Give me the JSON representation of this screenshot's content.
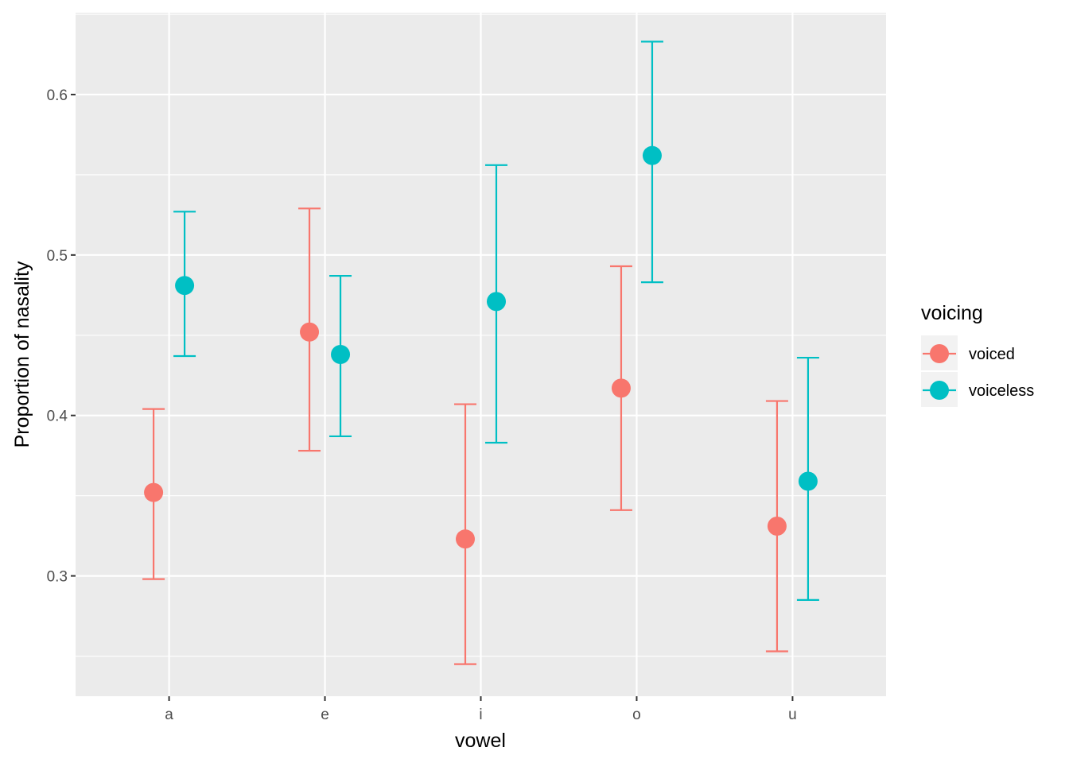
{
  "chart_data": {
    "type": "scatter",
    "subtype": "point-with-error-bars",
    "xlabel": "vowel",
    "ylabel": "Proportion of nasality",
    "categories": [
      "a",
      "e",
      "i",
      "o",
      "u"
    ],
    "ylim": [
      0.225,
      0.651
    ],
    "yticks": [
      "0.3",
      "0.4",
      "0.5",
      "0.6"
    ],
    "grid": true,
    "legend": {
      "title": "voicing",
      "position": "right"
    },
    "series": [
      {
        "name": "voiced",
        "color": "#F8766D",
        "values": [
          0.352,
          0.452,
          0.323,
          0.417,
          0.331
        ],
        "lower": [
          0.298,
          0.378,
          0.245,
          0.341,
          0.253
        ],
        "upper": [
          0.404,
          0.529,
          0.407,
          0.493,
          0.409
        ]
      },
      {
        "name": "voiceless",
        "color": "#00BFC4",
        "values": [
          0.481,
          0.438,
          0.471,
          0.562,
          0.359
        ],
        "lower": [
          0.437,
          0.387,
          0.383,
          0.483,
          0.285
        ],
        "upper": [
          0.527,
          0.487,
          0.556,
          0.633,
          0.436
        ]
      }
    ]
  }
}
